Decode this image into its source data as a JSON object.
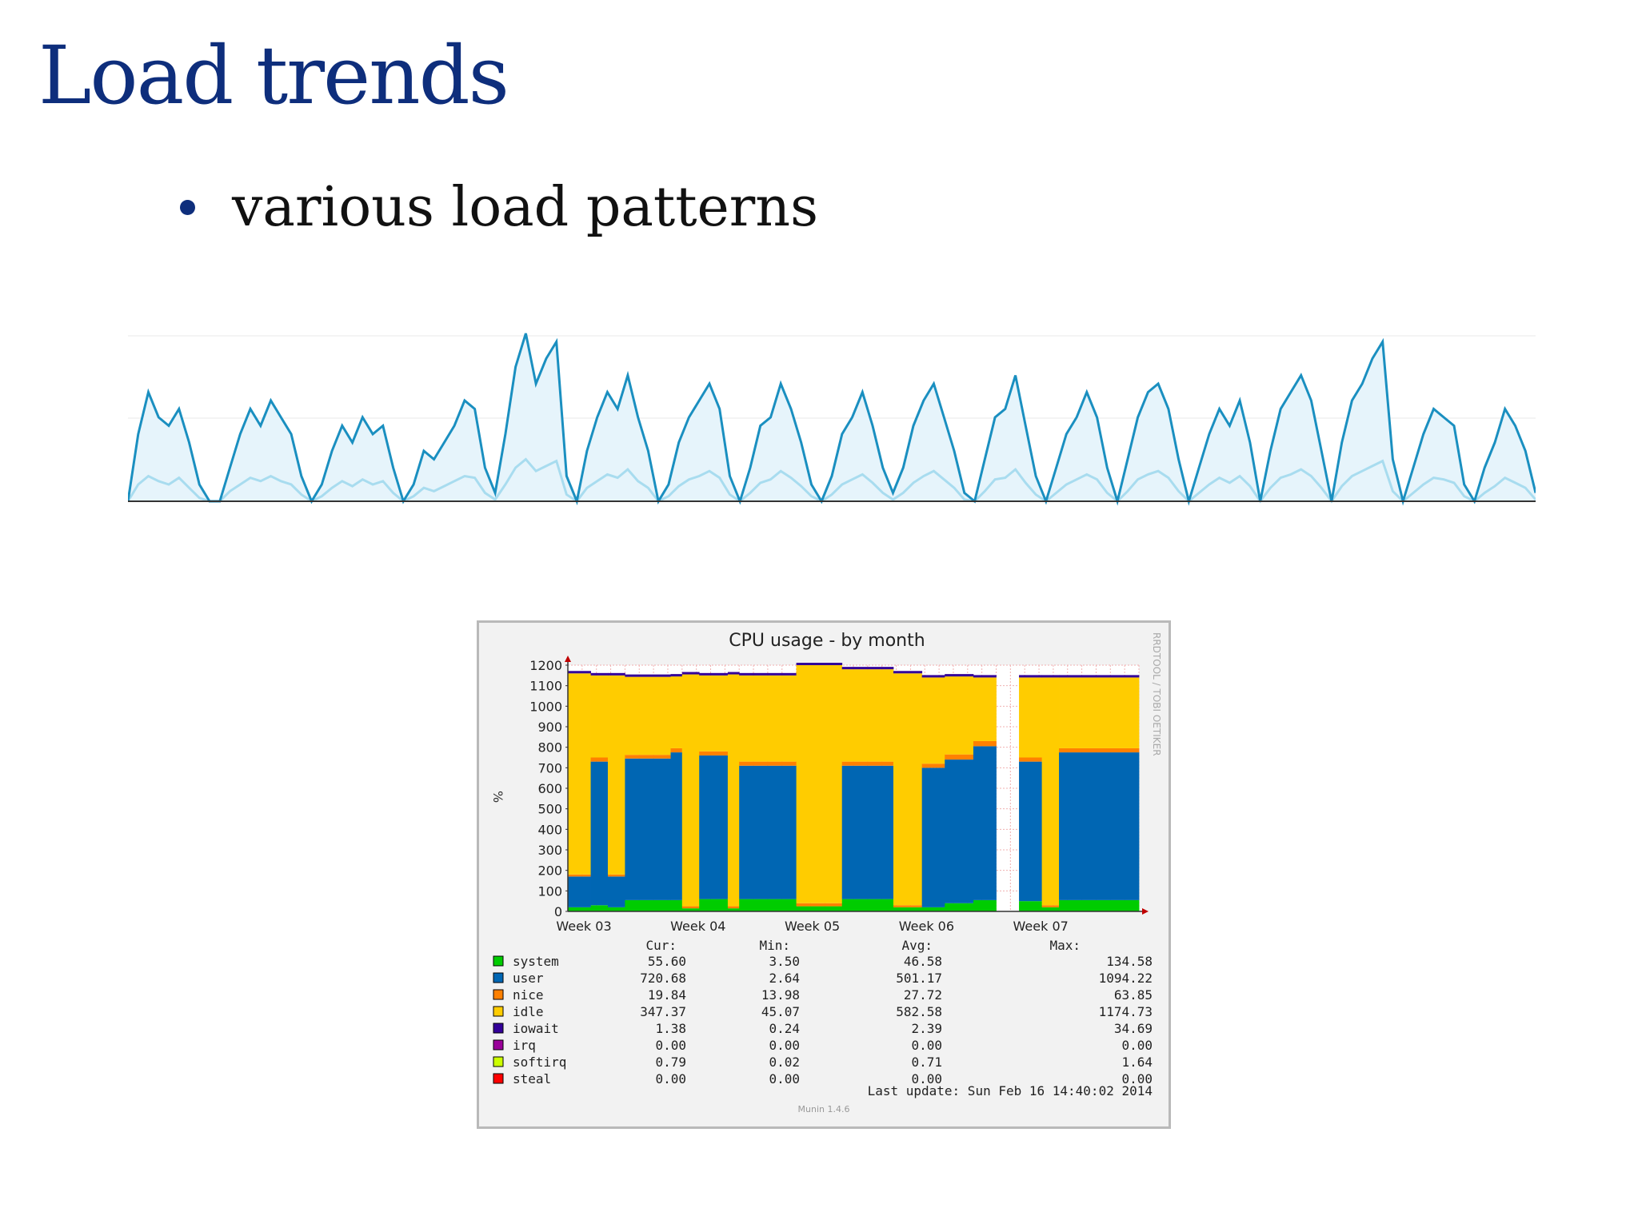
{
  "slide": {
    "title": "Load trends",
    "bullet": "various load patterns"
  },
  "chart_data": [
    {
      "type": "line",
      "title": "",
      "xlabel": "",
      "ylabel": "",
      "grid": true,
      "legend": "none",
      "colors": {
        "primary": "#1a8fc0",
        "secondary": "#a8dcef",
        "fill": "#e6f4fb"
      },
      "series": [
        {
          "name": "",
          "values": [
            0,
            0.4,
            0.65,
            0.5,
            0.45,
            0.55,
            0.35,
            0.1,
            0,
            0,
            0.2,
            0.4,
            0.55,
            0.45,
            0.6,
            0.5,
            0.4,
            0.15,
            0,
            0.1,
            0.3,
            0.45,
            0.35,
            0.5,
            0.4,
            0.45,
            0.2,
            0,
            0.1,
            0.3,
            0.25,
            0.35,
            0.45,
            0.6,
            0.55,
            0.2,
            0.05,
            0.4,
            0.8,
            1.0,
            0.7,
            0.85,
            0.95,
            0.15,
            0,
            0.3,
            0.5,
            0.65,
            0.55,
            0.75,
            0.5,
            0.3,
            0,
            0.1,
            0.35,
            0.5,
            0.6,
            0.7,
            0.55,
            0.15,
            0,
            0.2,
            0.45,
            0.5,
            0.7,
            0.55,
            0.35,
            0.1,
            0,
            0.15,
            0.4,
            0.5,
            0.65,
            0.45,
            0.2,
            0.05,
            0.2,
            0.45,
            0.6,
            0.7,
            0.5,
            0.3,
            0.05,
            0,
            0.25,
            0.5,
            0.55,
            0.75,
            0.45,
            0.15,
            0,
            0.2,
            0.4,
            0.5,
            0.65,
            0.5,
            0.2,
            0,
            0.25,
            0.5,
            0.65,
            0.7,
            0.55,
            0.25,
            0,
            0.2,
            0.4,
            0.55,
            0.45,
            0.6,
            0.35,
            0,
            0.3,
            0.55,
            0.65,
            0.75,
            0.6,
            0.3,
            0,
            0.35,
            0.6,
            0.7,
            0.85,
            0.95,
            0.25,
            0,
            0.2,
            0.4,
            0.55,
            0.5,
            0.45,
            0.1,
            0,
            0.2,
            0.35,
            0.55,
            0.45,
            0.3,
            0.05
          ]
        },
        {
          "name": "",
          "values": [
            0,
            0.1,
            0.15,
            0.12,
            0.1,
            0.14,
            0.08,
            0.02,
            0,
            0,
            0.06,
            0.1,
            0.14,
            0.12,
            0.15,
            0.12,
            0.1,
            0.04,
            0,
            0.03,
            0.08,
            0.12,
            0.09,
            0.13,
            0.1,
            0.12,
            0.05,
            0,
            0.03,
            0.08,
            0.06,
            0.09,
            0.12,
            0.15,
            0.14,
            0.05,
            0.01,
            0.1,
            0.2,
            0.25,
            0.18,
            0.21,
            0.24,
            0.04,
            0,
            0.08,
            0.12,
            0.16,
            0.14,
            0.19,
            0.12,
            0.08,
            0,
            0.03,
            0.09,
            0.13,
            0.15,
            0.18,
            0.14,
            0.04,
            0,
            0.05,
            0.11,
            0.13,
            0.18,
            0.14,
            0.09,
            0.03,
            0,
            0.04,
            0.1,
            0.13,
            0.16,
            0.11,
            0.05,
            0.01,
            0.05,
            0.11,
            0.15,
            0.18,
            0.13,
            0.08,
            0.01,
            0,
            0.06,
            0.13,
            0.14,
            0.19,
            0.11,
            0.04,
            0,
            0.05,
            0.1,
            0.13,
            0.16,
            0.13,
            0.05,
            0,
            0.06,
            0.13,
            0.16,
            0.18,
            0.14,
            0.06,
            0,
            0.05,
            0.1,
            0.14,
            0.11,
            0.15,
            0.09,
            0,
            0.08,
            0.14,
            0.16,
            0.19,
            0.15,
            0.08,
            0,
            0.09,
            0.15,
            0.18,
            0.21,
            0.24,
            0.06,
            0,
            0.05,
            0.1,
            0.14,
            0.13,
            0.11,
            0.03,
            0,
            0.05,
            0.09,
            0.14,
            0.11,
            0.08,
            0.01
          ]
        }
      ]
    },
    {
      "type": "area",
      "title": "CPU usage - by month",
      "ylabel": "%",
      "ylim": [
        0,
        1200
      ],
      "yticks": [
        "0",
        "100",
        "200",
        "300",
        "400",
        "500",
        "600",
        "700",
        "800",
        "900",
        "1000",
        "1100",
        "1200"
      ],
      "xticks": [
        "Week 03",
        "Week 04",
        "Week 05",
        "Week 06",
        "Week 07"
      ],
      "grid": true,
      "stacked": true,
      "watermark": "RRDTOOL / TOBI OETIKER",
      "segments": [
        {
          "t0": 0.0,
          "t1": 0.04,
          "user": 150,
          "system": 20,
          "nice": 10,
          "idle": 980
        },
        {
          "t0": 0.04,
          "t1": 0.07,
          "user": 700,
          "system": 30,
          "nice": 20,
          "idle": 400
        },
        {
          "t0": 0.07,
          "t1": 0.1,
          "user": 150,
          "system": 20,
          "nice": 10,
          "idle": 970
        },
        {
          "t0": 0.1,
          "t1": 0.18,
          "user": 690,
          "system": 55,
          "nice": 18,
          "idle": 380
        },
        {
          "t0": 0.18,
          "t1": 0.2,
          "user": 720,
          "system": 55,
          "nice": 20,
          "idle": 350
        },
        {
          "t0": 0.2,
          "t1": 0.23,
          "user": 0,
          "system": 15,
          "nice": 10,
          "idle": 1130
        },
        {
          "t0": 0.23,
          "t1": 0.28,
          "user": 700,
          "system": 60,
          "nice": 20,
          "idle": 370
        },
        {
          "t0": 0.28,
          "t1": 0.3,
          "user": 0,
          "system": 15,
          "nice": 10,
          "idle": 1130
        },
        {
          "t0": 0.3,
          "t1": 0.4,
          "user": 650,
          "system": 60,
          "nice": 20,
          "idle": 420
        },
        {
          "t0": 0.4,
          "t1": 0.48,
          "user": 0,
          "system": 25,
          "nice": 15,
          "idle": 1160
        },
        {
          "t0": 0.48,
          "t1": 0.57,
          "user": 650,
          "system": 60,
          "nice": 20,
          "idle": 450
        },
        {
          "t0": 0.57,
          "t1": 0.62,
          "user": 0,
          "system": 20,
          "nice": 10,
          "idle": 1130
        },
        {
          "t0": 0.62,
          "t1": 0.66,
          "user": 680,
          "system": 20,
          "nice": 20,
          "idle": 420
        },
        {
          "t0": 0.66,
          "t1": 0.71,
          "user": 700,
          "system": 40,
          "nice": 25,
          "idle": 380
        },
        {
          "t0": 0.71,
          "t1": 0.75,
          "user": 750,
          "system": 55,
          "nice": 25,
          "idle": 310
        },
        {
          "t0": 0.75,
          "t1": 0.79,
          "user": null,
          "system": null,
          "nice": null,
          "idle": null
        },
        {
          "t0": 0.79,
          "t1": 0.83,
          "user": 680,
          "system": 50,
          "nice": 20,
          "idle": 390
        },
        {
          "t0": 0.83,
          "t1": 0.86,
          "user": 0,
          "system": 20,
          "nice": 10,
          "idle": 1110
        },
        {
          "t0": 0.86,
          "t1": 1.0,
          "user": 720,
          "system": 55,
          "nice": 20,
          "idle": 345
        }
      ],
      "legend": {
        "headers": [
          "Cur:",
          "Min:",
          "Avg:",
          "Max:"
        ],
        "rows": [
          {
            "name": "system",
            "color": "#00cc00",
            "cur": "55.60",
            "min": "3.50",
            "avg": "46.58",
            "max": "134.58"
          },
          {
            "name": "user",
            "color": "#0066b3",
            "cur": "720.68",
            "min": "2.64",
            "avg": "501.17",
            "max": "1094.22"
          },
          {
            "name": "nice",
            "color": "#ff8000",
            "cur": "19.84",
            "min": "13.98",
            "avg": "27.72",
            "max": "63.85"
          },
          {
            "name": "idle",
            "color": "#ffcc00",
            "cur": "347.37",
            "min": "45.07",
            "avg": "582.58",
            "max": "1174.73"
          },
          {
            "name": "iowait",
            "color": "#330099",
            "cur": "1.38",
            "min": "0.24",
            "avg": "2.39",
            "max": "34.69"
          },
          {
            "name": "irq",
            "color": "#990099",
            "cur": "0.00",
            "min": "0.00",
            "avg": "0.00",
            "max": "0.00"
          },
          {
            "name": "softirq",
            "color": "#ccff00",
            "cur": "0.79",
            "min": "0.02",
            "avg": "0.71",
            "max": "1.64"
          },
          {
            "name": "steal",
            "color": "#ff0000",
            "cur": "0.00",
            "min": "0.00",
            "avg": "0.00",
            "max": "0.00"
          }
        ]
      },
      "last_update": "Last update:  Sun Feb 16 14:40:02 2014",
      "footer": "Munin 1.4.6"
    }
  ]
}
